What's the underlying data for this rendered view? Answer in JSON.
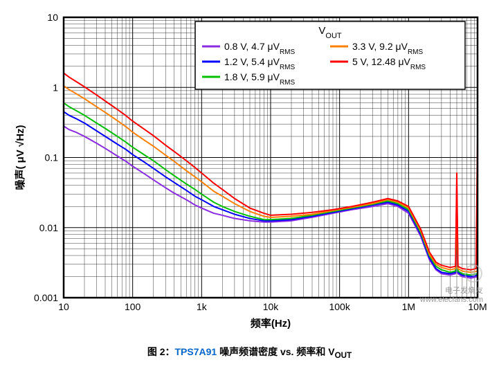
{
  "chart": {
    "type": "line",
    "title_fontsize": 14,
    "xlabel": "频率(Hz)",
    "ylabel": "噪声( μV √Hz)",
    "label_fontsize": 15,
    "tick_fontsize": 14,
    "x_scale": "log",
    "y_scale": "log",
    "xlim": [
      10,
      10000000
    ],
    "ylim": [
      0.001,
      10
    ],
    "x_ticks": [
      10,
      100,
      1000,
      10000,
      100000,
      1000000,
      10000000
    ],
    "x_tick_labels": [
      "10",
      "100",
      "1k",
      "10k",
      "100k",
      "1M",
      "10M"
    ],
    "y_ticks": [
      0.001,
      0.01,
      0.1,
      1,
      10
    ],
    "y_tick_labels": [
      "0.001",
      "0.01",
      "0.1",
      "1",
      "10"
    ],
    "background_color": "#ffffff",
    "grid_major_color": "#000000",
    "grid_major_width": 1,
    "grid_minor_color": "#000000",
    "grid_minor_width": 0.4,
    "axis_border_width": 2.5,
    "legend": {
      "title": "V",
      "title_sub": "OUT",
      "position": "top-right",
      "fontsize": 14,
      "border_color": "#000000",
      "border_width": 1.5,
      "background": "#ffffff",
      "entries": [
        {
          "label_pre": "0.8 V, 4.7 ",
          "label_unit": "μV",
          "label_sub": "RMS",
          "color": "#8a2be2"
        },
        {
          "label_pre": "1.2 V, 5.4 ",
          "label_unit": "μV",
          "label_sub": "RMS",
          "color": "#0000ff"
        },
        {
          "label_pre": "1.8 V, 5.9 ",
          "label_unit": "μV",
          "label_sub": "RMS",
          "color": "#00c000"
        },
        {
          "label_pre": "3.3 V, 9.2 ",
          "label_unit": "μV",
          "label_sub": "RMS",
          "color": "#ff8000"
        },
        {
          "label_pre": "5 V, 12.48 ",
          "label_unit": "μV",
          "label_sub": "RMS",
          "color": "#ff0000"
        }
      ]
    },
    "series": [
      {
        "name": "0.8V",
        "color": "#8a2be2",
        "line_width": 2,
        "points": [
          [
            10,
            0.28
          ],
          [
            12,
            0.25
          ],
          [
            15,
            0.23
          ],
          [
            20,
            0.2
          ],
          [
            30,
            0.16
          ],
          [
            40,
            0.135
          ],
          [
            60,
            0.105
          ],
          [
            80,
            0.088
          ],
          [
            100,
            0.075
          ],
          [
            150,
            0.058
          ],
          [
            200,
            0.048
          ],
          [
            300,
            0.037
          ],
          [
            400,
            0.031
          ],
          [
            600,
            0.025
          ],
          [
            800,
            0.021
          ],
          [
            1000,
            0.019
          ],
          [
            1500,
            0.016
          ],
          [
            2000,
            0.015
          ],
          [
            3000,
            0.0135
          ],
          [
            5000,
            0.0125
          ],
          [
            8000,
            0.012
          ],
          [
            10000,
            0.012
          ],
          [
            20000,
            0.0125
          ],
          [
            40000,
            0.014
          ],
          [
            80000,
            0.016
          ],
          [
            150000,
            0.018
          ],
          [
            300000,
            0.02
          ],
          [
            500000,
            0.022
          ],
          [
            700000,
            0.02
          ],
          [
            1000000,
            0.016
          ],
          [
            1500000,
            0.0075
          ],
          [
            2000000,
            0.0035
          ],
          [
            2500000,
            0.0025
          ],
          [
            3000000,
            0.0022
          ],
          [
            4000000,
            0.0021
          ],
          [
            4800000,
            0.0022
          ],
          [
            5000000,
            0.009
          ],
          [
            5200000,
            0.0022
          ],
          [
            6000000,
            0.002
          ],
          [
            8000000,
            0.0019
          ],
          [
            10000000,
            0.002
          ]
        ]
      },
      {
        "name": "1.2V",
        "color": "#0000ff",
        "line_width": 2,
        "points": [
          [
            10,
            0.45
          ],
          [
            12,
            0.4
          ],
          [
            15,
            0.36
          ],
          [
            20,
            0.31
          ],
          [
            30,
            0.24
          ],
          [
            40,
            0.2
          ],
          [
            60,
            0.155
          ],
          [
            80,
            0.13
          ],
          [
            100,
            0.11
          ],
          [
            150,
            0.085
          ],
          [
            200,
            0.07
          ],
          [
            300,
            0.053
          ],
          [
            400,
            0.044
          ],
          [
            600,
            0.034
          ],
          [
            800,
            0.028
          ],
          [
            1000,
            0.025
          ],
          [
            1500,
            0.02
          ],
          [
            2000,
            0.018
          ],
          [
            3000,
            0.0155
          ],
          [
            5000,
            0.0135
          ],
          [
            8000,
            0.0125
          ],
          [
            10000,
            0.0125
          ],
          [
            20000,
            0.013
          ],
          [
            40000,
            0.0145
          ],
          [
            80000,
            0.0165
          ],
          [
            150000,
            0.0185
          ],
          [
            300000,
            0.021
          ],
          [
            500000,
            0.023
          ],
          [
            700000,
            0.021
          ],
          [
            1000000,
            0.017
          ],
          [
            1500000,
            0.008
          ],
          [
            2000000,
            0.0037
          ],
          [
            2500000,
            0.0026
          ],
          [
            3000000,
            0.0023
          ],
          [
            4000000,
            0.0022
          ],
          [
            4800000,
            0.0023
          ],
          [
            5000000,
            0.04
          ],
          [
            5200000,
            0.0023
          ],
          [
            6000000,
            0.0021
          ],
          [
            8000000,
            0.002
          ],
          [
            10000000,
            0.0021
          ]
        ]
      },
      {
        "name": "1.8V",
        "color": "#00c000",
        "line_width": 2,
        "points": [
          [
            10,
            0.6
          ],
          [
            12,
            0.53
          ],
          [
            15,
            0.47
          ],
          [
            20,
            0.4
          ],
          [
            30,
            0.31
          ],
          [
            40,
            0.26
          ],
          [
            60,
            0.2
          ],
          [
            80,
            0.165
          ],
          [
            100,
            0.14
          ],
          [
            150,
            0.108
          ],
          [
            200,
            0.09
          ],
          [
            300,
            0.067
          ],
          [
            400,
            0.055
          ],
          [
            600,
            0.042
          ],
          [
            800,
            0.035
          ],
          [
            1000,
            0.03
          ],
          [
            1500,
            0.023
          ],
          [
            2000,
            0.02
          ],
          [
            3000,
            0.017
          ],
          [
            5000,
            0.0145
          ],
          [
            8000,
            0.013
          ],
          [
            10000,
            0.013
          ],
          [
            20000,
            0.0135
          ],
          [
            40000,
            0.015
          ],
          [
            80000,
            0.017
          ],
          [
            150000,
            0.019
          ],
          [
            300000,
            0.0215
          ],
          [
            500000,
            0.024
          ],
          [
            700000,
            0.022
          ],
          [
            1000000,
            0.018
          ],
          [
            1500000,
            0.0085
          ],
          [
            2000000,
            0.004
          ],
          [
            2500000,
            0.0028
          ],
          [
            3000000,
            0.0025
          ],
          [
            4000000,
            0.0023
          ],
          [
            4800000,
            0.0024
          ],
          [
            5000000,
            0.015
          ],
          [
            5200000,
            0.0024
          ],
          [
            6000000,
            0.0022
          ],
          [
            8000000,
            0.0021
          ],
          [
            10000000,
            0.0022
          ]
        ]
      },
      {
        "name": "3.3V",
        "color": "#ff8000",
        "line_width": 2,
        "points": [
          [
            10,
            1.05
          ],
          [
            12,
            0.93
          ],
          [
            15,
            0.82
          ],
          [
            20,
            0.69
          ],
          [
            30,
            0.53
          ],
          [
            40,
            0.44
          ],
          [
            60,
            0.335
          ],
          [
            80,
            0.275
          ],
          [
            100,
            0.23
          ],
          [
            150,
            0.175
          ],
          [
            200,
            0.145
          ],
          [
            300,
            0.108
          ],
          [
            400,
            0.088
          ],
          [
            600,
            0.065
          ],
          [
            800,
            0.053
          ],
          [
            1000,
            0.045
          ],
          [
            1500,
            0.033
          ],
          [
            2000,
            0.028
          ],
          [
            3000,
            0.022
          ],
          [
            5000,
            0.017
          ],
          [
            8000,
            0.0145
          ],
          [
            10000,
            0.014
          ],
          [
            20000,
            0.0145
          ],
          [
            40000,
            0.0155
          ],
          [
            80000,
            0.0175
          ],
          [
            150000,
            0.0195
          ],
          [
            300000,
            0.022
          ],
          [
            500000,
            0.025
          ],
          [
            700000,
            0.023
          ],
          [
            1000000,
            0.019
          ],
          [
            1500000,
            0.009
          ],
          [
            2000000,
            0.0042
          ],
          [
            2500000,
            0.003
          ],
          [
            3000000,
            0.0027
          ],
          [
            4000000,
            0.0025
          ],
          [
            4800000,
            0.0026
          ],
          [
            5000000,
            0.035
          ],
          [
            5200000,
            0.0026
          ],
          [
            6000000,
            0.0024
          ],
          [
            8000000,
            0.0023
          ],
          [
            10000000,
            0.0024
          ]
        ]
      },
      {
        "name": "5V",
        "color": "#ff0000",
        "line_width": 2,
        "points": [
          [
            10,
            1.6
          ],
          [
            12,
            1.4
          ],
          [
            15,
            1.22
          ],
          [
            20,
            1.02
          ],
          [
            30,
            0.78
          ],
          [
            40,
            0.64
          ],
          [
            60,
            0.485
          ],
          [
            80,
            0.395
          ],
          [
            100,
            0.33
          ],
          [
            150,
            0.25
          ],
          [
            200,
            0.205
          ],
          [
            300,
            0.15
          ],
          [
            400,
            0.122
          ],
          [
            600,
            0.09
          ],
          [
            800,
            0.072
          ],
          [
            1000,
            0.06
          ],
          [
            1500,
            0.043
          ],
          [
            2000,
            0.035
          ],
          [
            3000,
            0.026
          ],
          [
            5000,
            0.019
          ],
          [
            8000,
            0.016
          ],
          [
            10000,
            0.015
          ],
          [
            20000,
            0.0155
          ],
          [
            40000,
            0.0165
          ],
          [
            80000,
            0.018
          ],
          [
            150000,
            0.02
          ],
          [
            300000,
            0.023
          ],
          [
            500000,
            0.026
          ],
          [
            700000,
            0.024
          ],
          [
            1000000,
            0.02
          ],
          [
            1500000,
            0.0095
          ],
          [
            2000000,
            0.0045
          ],
          [
            2500000,
            0.0032
          ],
          [
            3000000,
            0.0029
          ],
          [
            4000000,
            0.0027
          ],
          [
            4800000,
            0.0028
          ],
          [
            5000000,
            0.06
          ],
          [
            5200000,
            0.0028
          ],
          [
            6000000,
            0.0026
          ],
          [
            8000000,
            0.0025
          ],
          [
            9500000,
            0.0026
          ],
          [
            10000000,
            0.2
          ]
        ]
      }
    ]
  },
  "caption": {
    "prefix": "图 2：",
    "part": "TPS7A91",
    "suffix_pre": " 噪声频谱密度 vs. 频率和 V",
    "suffix_sub": "OUT"
  },
  "watermark": {
    "line1": "电子发烧友",
    "line2": "www.elecfans.com"
  }
}
